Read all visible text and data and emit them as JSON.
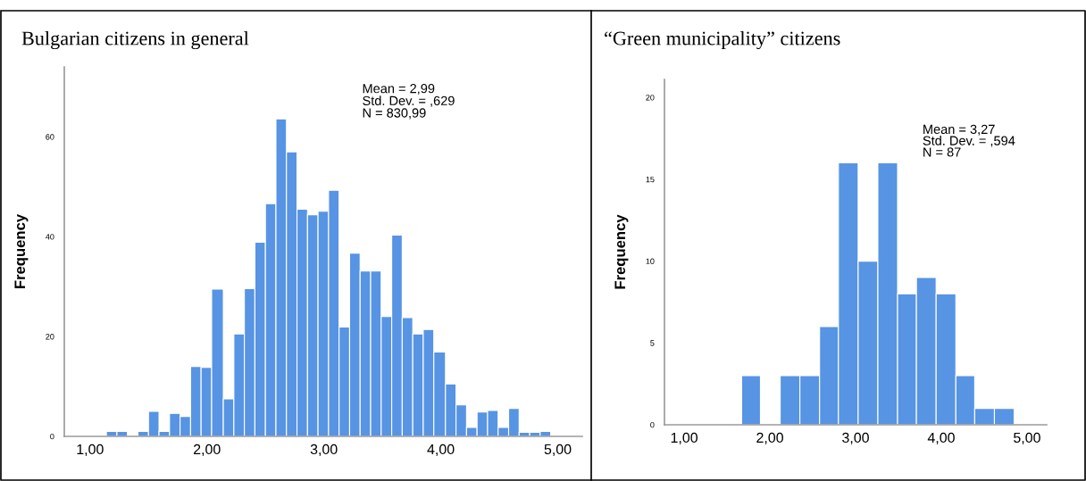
{
  "chart_data": [
    {
      "type": "histogram",
      "title": "Bulgarian citizens in general",
      "ylabel": "Frequency",
      "color": "#5794e3",
      "bins": [
        1.14,
        1.23,
        1.32,
        1.41,
        1.5,
        1.59,
        1.68,
        1.77,
        1.86,
        1.95,
        2.04,
        2.14,
        2.23,
        2.32,
        2.41,
        2.5,
        2.59,
        2.68,
        2.77,
        2.86,
        2.95,
        3.04,
        3.13,
        3.22,
        3.31,
        3.4,
        3.49,
        3.58,
        3.67,
        3.76,
        3.85,
        3.94,
        4.04,
        4.13,
        4.22,
        4.31,
        4.4,
        4.49,
        4.58,
        4.67,
        4.76,
        4.85,
        4.94
      ],
      "values": [
        1,
        1,
        0,
        1,
        5,
        1,
        4.6,
        4,
        14,
        13.8,
        29.5,
        7.5,
        20.5,
        29.6,
        38.9,
        46.6,
        63.6,
        57,
        45.5,
        44.4,
        45.1,
        49.3,
        21.9,
        36.7,
        33.1,
        33.1,
        24,
        40.3,
        23.8,
        20.5,
        21.4,
        16.9,
        10.5,
        6.3,
        1.8,
        4.9,
        5.2,
        1.8,
        5.6,
        0.8,
        0.8,
        1
      ],
      "xlim": [
        0.78,
        5.21
      ],
      "ylim": [
        0,
        74
      ],
      "xticks": [
        {
          "value": 1,
          "label": "1,00"
        },
        {
          "value": 2,
          "label": "2,00"
        },
        {
          "value": 3,
          "label": "3,00"
        },
        {
          "value": 4,
          "label": "4,00"
        },
        {
          "value": 5,
          "label": "5,00"
        }
      ],
      "yticks": [
        0,
        20,
        40,
        60
      ],
      "grid": false,
      "annotations": [
        "Mean = 2,99",
        "Std. Dev. = ,629",
        "N = 830,99"
      ]
    },
    {
      "type": "histogram",
      "title": "“Green municipality” citizens",
      "ylabel": "Frequency",
      "color": "#5794e3",
      "bins": [
        1.67,
        1.89,
        2.12,
        2.35,
        2.58,
        2.8,
        3.03,
        3.26,
        3.49,
        3.71,
        3.94,
        4.17,
        4.39,
        4.62,
        4.85
      ],
      "values": [
        3,
        0,
        3,
        3,
        6,
        16,
        10,
        16,
        8,
        9,
        8,
        3,
        1,
        1
      ],
      "xlim": [
        0.77,
        5.23
      ],
      "ylim": [
        0,
        21.1
      ],
      "xticks": [
        {
          "value": 1,
          "label": "1,00"
        },
        {
          "value": 2,
          "label": "2,00"
        },
        {
          "value": 3,
          "label": "3,00"
        },
        {
          "value": 4,
          "label": "4,00"
        },
        {
          "value": 5,
          "label": "5,00"
        }
      ],
      "yticks": [
        0,
        5,
        10,
        15,
        20
      ],
      "grid": false,
      "annotations": [
        "Mean = 3,27",
        "Std. Dev. = ,594",
        "N = 87"
      ]
    }
  ]
}
